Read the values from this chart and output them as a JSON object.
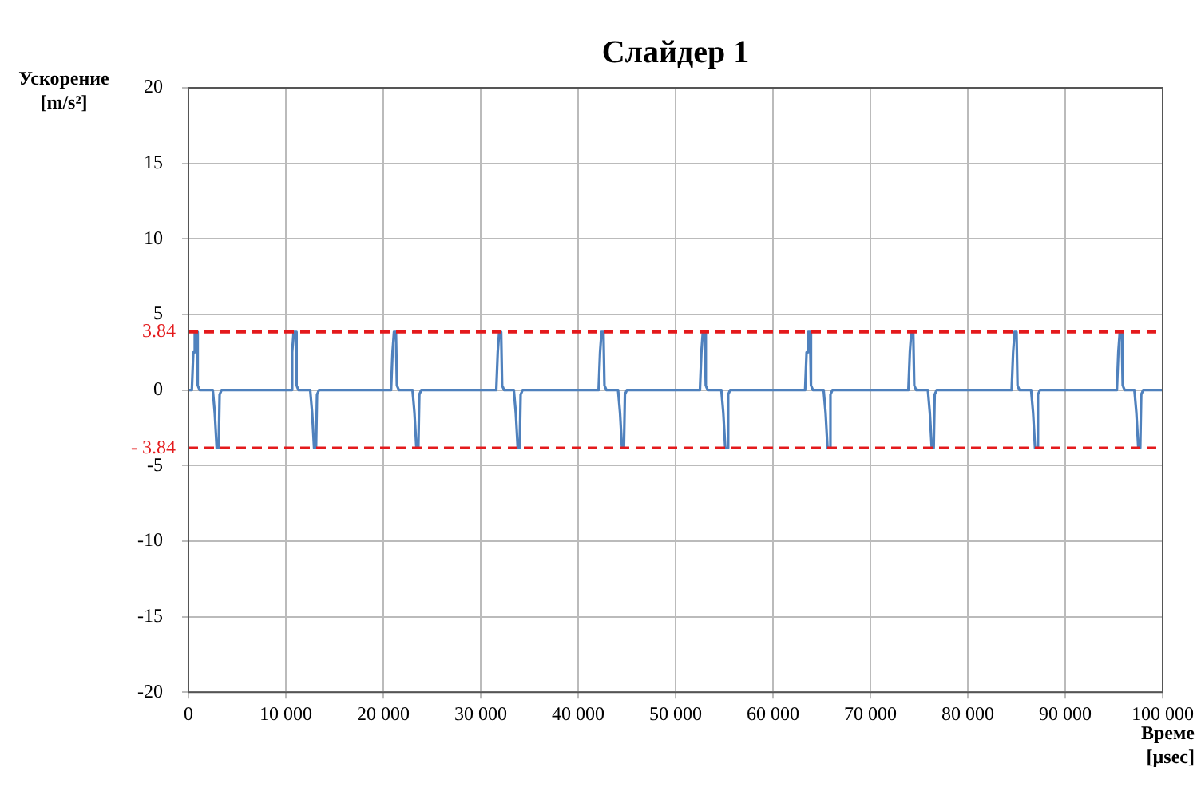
{
  "chart_data": {
    "type": "line",
    "title": "Слайдер 1",
    "xlabel": "Време [µsec]",
    "ylabel": "Ускорение [m/s²]",
    "x": [
      0,
      350,
      500,
      650,
      850,
      950,
      1150,
      2500,
      2700,
      2900,
      3100,
      3200,
      3400,
      10500,
      10650,
      10800,
      11000,
      11100,
      11300,
      12500,
      12700,
      12900,
      13100,
      13200,
      13400,
      20800,
      20950,
      21100,
      21300,
      21400,
      21600,
      23000,
      23200,
      23400,
      23600,
      23700,
      23900,
      31600,
      31750,
      31900,
      32100,
      32200,
      32400,
      33400,
      33600,
      33800,
      34000,
      34100,
      34300,
      42100,
      42250,
      42400,
      42600,
      42700,
      42900,
      44100,
      44300,
      44500,
      44700,
      44800,
      45000,
      52500,
      52650,
      52800,
      53000,
      53100,
      53300,
      54700,
      54900,
      55100,
      55300,
      55400,
      55600,
      63300,
      63450,
      63600,
      63800,
      63900,
      64100,
      65200,
      65400,
      65600,
      65800,
      65900,
      66100,
      73900,
      74050,
      74200,
      74400,
      74500,
      74700,
      75900,
      76100,
      76300,
      76500,
      76600,
      76800,
      84500,
      84650,
      84800,
      85000,
      85100,
      85300,
      86500,
      86700,
      86900,
      87100,
      87200,
      87400,
      95300,
      95450,
      95600,
      95800,
      95900,
      96100,
      97100,
      97300,
      97500,
      97700,
      97800,
      98000,
      100000
    ],
    "series": [
      {
        "color": "#4f81bd",
        "values": [
          0,
          0,
          2.5,
          3.84,
          3.84,
          0.3,
          0,
          0,
          -1.5,
          -3.84,
          -3.84,
          -0.3,
          0,
          0,
          2.5,
          3.84,
          3.84,
          0.3,
          0,
          0,
          -1.5,
          -3.84,
          -3.84,
          -0.3,
          0,
          0,
          2.5,
          3.84,
          3.84,
          0.3,
          0,
          0,
          -1.5,
          -3.84,
          -3.84,
          -0.3,
          0,
          0,
          2.5,
          3.84,
          3.84,
          0.3,
          0,
          0,
          -1.5,
          -3.84,
          -3.84,
          -0.3,
          0,
          0,
          2.5,
          3.84,
          3.84,
          0.3,
          0,
          0,
          -1.5,
          -3.84,
          -3.84,
          -0.3,
          0,
          0,
          2.5,
          3.84,
          3.84,
          0.3,
          0,
          0,
          -1.5,
          -3.84,
          -3.84,
          -0.3,
          0,
          0,
          2.5,
          3.84,
          3.84,
          0.3,
          0,
          0,
          -1.5,
          -3.84,
          -3.84,
          -0.3,
          0,
          0,
          2.5,
          3.84,
          3.84,
          0.3,
          0,
          0,
          -1.5,
          -3.84,
          -3.84,
          -0.3,
          0,
          0,
          2.5,
          3.84,
          3.84,
          0.3,
          0,
          0,
          -1.5,
          -3.84,
          -3.84,
          -0.3,
          0,
          0,
          2.5,
          3.84,
          3.84,
          0.3,
          0,
          0,
          -1.5,
          -3.84,
          -3.84,
          -0.3,
          0,
          0
        ]
      }
    ],
    "xlim": [
      0,
      100000
    ],
    "xticks": [
      0,
      {
        "value": 10000,
        "label": "10 000"
      },
      {
        "value": 20000,
        "label": "20 000"
      },
      {
        "value": 30000,
        "label": "30 000"
      },
      {
        "value": 40000,
        "label": "40 000"
      },
      {
        "value": 50000,
        "label": "50 000"
      },
      {
        "value": 60000,
        "label": "60 000"
      },
      {
        "value": 70000,
        "label": "70 000"
      },
      {
        "value": 80000,
        "label": "80 000"
      },
      {
        "value": 90000,
        "label": "90 000"
      },
      {
        "value": 100000,
        "label": "100 000"
      }
    ],
    "ylim": [
      -20,
      20
    ],
    "yticks": [
      -20,
      -15,
      -10,
      -5,
      0,
      5,
      10,
      15,
      20
    ],
    "ref_lines": [
      {
        "axis": "y",
        "value": 3.84,
        "label": "3.84",
        "color": "#e41a1c",
        "line_style": "dashed"
      },
      {
        "axis": "y",
        "value": -3.84,
        "label": "- 3.84",
        "color": "#e41a1c",
        "line_style": "dashed"
      }
    ],
    "grid": true,
    "legend": false,
    "marker": "none",
    "line_style": "solid"
  }
}
